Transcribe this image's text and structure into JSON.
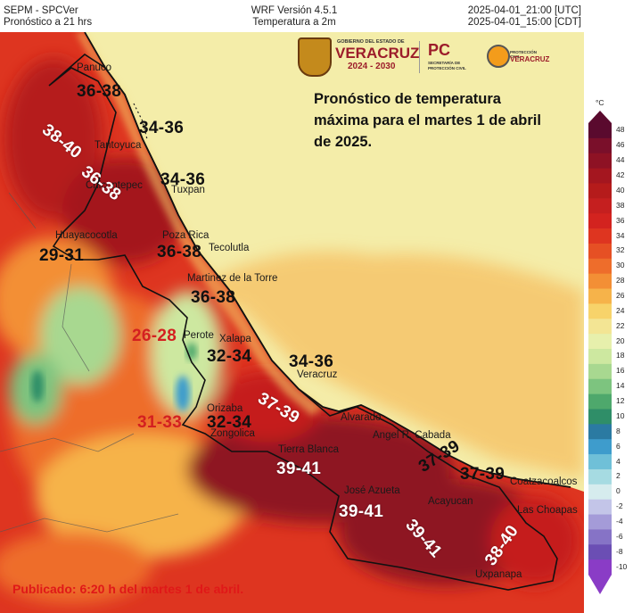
{
  "header": {
    "left_line1": "SEPM - SPCVer",
    "left_line2": "Pronóstico a 21 hrs",
    "center_line1": "WRF Versión 4.5.1",
    "center_line2": "Temperatura a 2m",
    "right_line1": "2025-04-01_21:00 [UTC]",
    "right_line2": "2025-04-01_15:00 [CDT]"
  },
  "logos": {
    "gov_small": "GOBIERNO DEL ESTADO DE",
    "gov_name": "VERACRUZ",
    "gov_years": "2024 - 2030",
    "pc_mark": "PC",
    "pc_sub": "SECRETARÍA DE PROTECCIÓN CIVIL",
    "pcv_small": "PROTECCIÓN CIVIL",
    "pcv_name": "VERACRUZ"
  },
  "forecast_note": "Pronóstico de temperatura máxima para el martes 1 de abril de 2025.",
  "published": "Publicado: 6:20 h del martes 1 de abril.",
  "ranges": [
    {
      "text": "36-38",
      "color": "black"
    },
    {
      "text": "38-40",
      "color": "white"
    },
    {
      "text": "34-36",
      "color": "black"
    },
    {
      "text": "36-38",
      "color": "white"
    },
    {
      "text": "34-36",
      "color": "black"
    },
    {
      "text": "29-31",
      "color": "black"
    },
    {
      "text": "36-38",
      "color": "black"
    },
    {
      "text": "36-38",
      "color": "black"
    },
    {
      "text": "26-28",
      "color": "red"
    },
    {
      "text": "32-34",
      "color": "black"
    },
    {
      "text": "34-36",
      "color": "black"
    },
    {
      "text": "37-39",
      "color": "white"
    },
    {
      "text": "31-33",
      "color": "red"
    },
    {
      "text": "32-34",
      "color": "black"
    },
    {
      "text": "39-41",
      "color": "white"
    },
    {
      "text": "37-39",
      "color": "black"
    },
    {
      "text": "37-39",
      "color": "black"
    },
    {
      "text": "39-41",
      "color": "white"
    },
    {
      "text": "39-41",
      "color": "white"
    },
    {
      "text": "38-40",
      "color": "white"
    }
  ],
  "cities": [
    "Panuco",
    "Tantoyuca",
    "Chicontepec",
    "Tuxpan",
    "Huayacocotla",
    "Poza Rica",
    "Tecolutla",
    "Martinez de la Torre",
    "Perote",
    "Xalapa",
    "Veracruz",
    "Orizaba",
    "Zongolica",
    "Alvarado",
    "Angel R. Cabada",
    "Tierra Blanca",
    "José Azueta",
    "Acayucan",
    "Coatzacoalcos",
    "Las Choapas",
    "Uxpanapa"
  ],
  "colorbar": {
    "unit": "°C",
    "ticks": [
      48,
      46,
      44,
      42,
      40,
      38,
      36,
      34,
      32,
      30,
      28,
      26,
      24,
      22,
      20,
      18,
      16,
      14,
      12,
      10,
      8,
      6,
      4,
      2,
      0,
      -2,
      -4,
      -6,
      -8,
      -10
    ],
    "colors": [
      "#5a0a2e",
      "#7a0f2a",
      "#8e1224",
      "#a4161f",
      "#b51b1b",
      "#c51f1f",
      "#d3231f",
      "#de3520",
      "#e65024",
      "#ee6d2b",
      "#f38f35",
      "#f6b34a",
      "#f7d36a",
      "#f3e594",
      "#e7f0ac",
      "#cde8a0",
      "#a8d890",
      "#7dc47f",
      "#4ea86c",
      "#2f8e68",
      "#2b7aa2",
      "#3e9ccc",
      "#6fc0d8",
      "#a6dbe2",
      "#d6ecee",
      "#c3c5e8",
      "#a49bd8",
      "#8673c6",
      "#6b4eb4",
      "#8a3cc6"
    ]
  }
}
